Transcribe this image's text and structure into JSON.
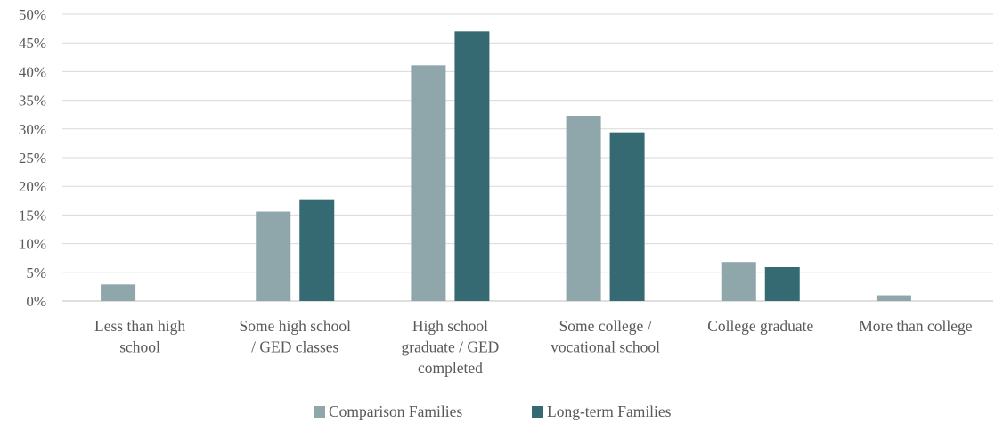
{
  "chart_data": {
    "type": "bar",
    "categories": [
      [
        "Less than high",
        "school"
      ],
      [
        "Some high school",
        "/ GED classes"
      ],
      [
        "High school",
        "graduate / GED",
        "completed"
      ],
      [
        "Some college /",
        "vocational school"
      ],
      [
        "College graduate"
      ],
      [
        "More than college"
      ]
    ],
    "series": [
      {
        "name": "Comparison Families",
        "color": "#8fa6ab",
        "values": [
          2.9,
          15.6,
          41.1,
          32.3,
          6.8,
          1.0
        ]
      },
      {
        "name": "Long-term Families",
        "color": "#356a73",
        "values": [
          0,
          17.6,
          47.0,
          29.4,
          5.9,
          0
        ]
      }
    ],
    "y_ticks": [
      "0%",
      "5%",
      "10%",
      "15%",
      "20%",
      "25%",
      "30%",
      "35%",
      "40%",
      "45%",
      "50%"
    ],
    "ylim": [
      0,
      50
    ],
    "grid": true,
    "legend_position": "bottom"
  }
}
